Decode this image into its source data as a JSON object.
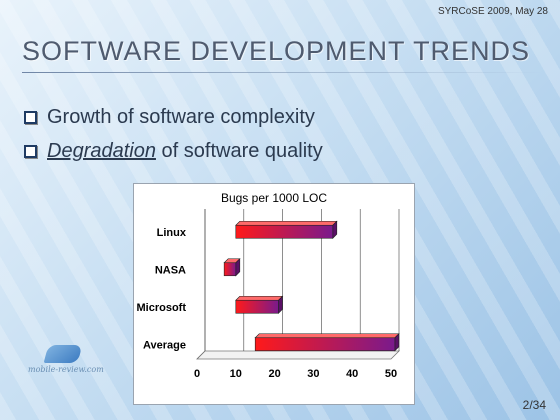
{
  "header": {
    "event": "SYRCoSE 2009, May 28"
  },
  "slide": {
    "title": "SOFTWARE DEVELOPMENT TRENDS",
    "bullets": [
      {
        "emphasis": "",
        "text": "Growth of software complexity"
      },
      {
        "emphasis": "Degradation",
        "text": " of software quality"
      }
    ],
    "page": "2/34"
  },
  "watermark": {
    "text": "mobile-review.com"
  },
  "colors": {
    "bar_start": "#ff1a1a",
    "bar_end": "#7a1a8c",
    "title": "#4f5b6f"
  },
  "chart_data": {
    "type": "bar",
    "orientation": "horizontal",
    "title": "Bugs per 1000 LOC",
    "categories": [
      "Linux",
      "NASA",
      "Microsoft",
      "Average"
    ],
    "ranges": [
      [
        10,
        35
      ],
      [
        7,
        10
      ],
      [
        10,
        21
      ],
      [
        15,
        51
      ]
    ],
    "xlim": [
      0,
      50
    ],
    "xticks": [
      0,
      10,
      20,
      30,
      40,
      50
    ],
    "grid": true
  }
}
